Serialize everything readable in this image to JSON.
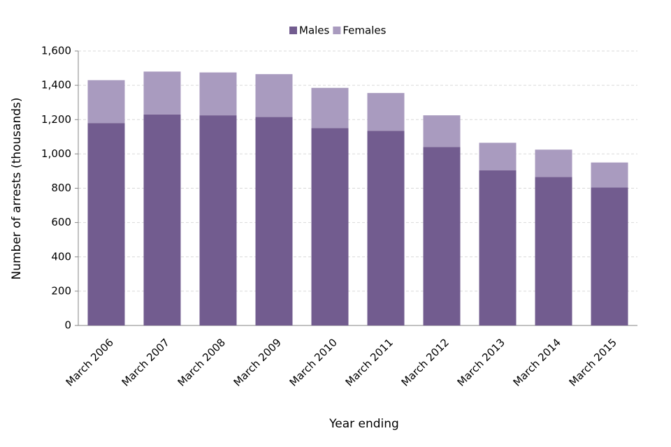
{
  "chart_data": {
    "type": "stacked-bar",
    "x_label": "Year ending",
    "y_label": "Number of arrests (thousands)",
    "categories": [
      "March 2006",
      "March 2007",
      "March 2008",
      "March 2009",
      "March 2010",
      "March 2011",
      "March 2012",
      "March 2013",
      "March 2014",
      "March 2015"
    ],
    "series": [
      {
        "name": "Males",
        "color": "#725c8f",
        "values": [
          1180,
          1230,
          1225,
          1215,
          1150,
          1135,
          1040,
          905,
          865,
          805
        ]
      },
      {
        "name": "Females",
        "color": "#a99bbf",
        "values": [
          250,
          250,
          250,
          250,
          235,
          220,
          185,
          160,
          160,
          145
        ]
      }
    ],
    "ylim": [
      0,
      1600
    ],
    "yticks": [
      0,
      200,
      400,
      600,
      800,
      {
        "value": 1000,
        "label": "1,000"
      },
      {
        "value": 1200,
        "label": "1,200"
      },
      {
        "value": 1400,
        "label": "1,400"
      },
      {
        "value": 1600,
        "label": "1,600"
      }
    ],
    "grid": true,
    "legend": "top"
  }
}
